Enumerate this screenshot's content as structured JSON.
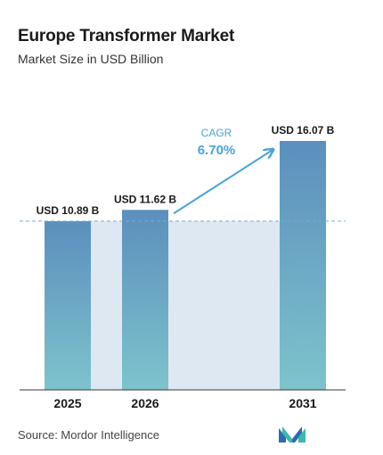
{
  "header": {
    "title": "Europe Transformer Market",
    "subtitle": "Market Size in USD Billion"
  },
  "chart_data": {
    "type": "bar",
    "categories": [
      "2025",
      "2026",
      "2031"
    ],
    "values": [
      10.89,
      11.62,
      16.07
    ],
    "value_labels": [
      "USD 10.89 B",
      "USD 11.62 B",
      "USD 16.07 B"
    ],
    "ylim": [
      0,
      16.07
    ],
    "grid": false,
    "annotations": {
      "cagr_label": "CAGR",
      "cagr_value": "6.70%"
    },
    "colors": {
      "bar_top": "#5b8fbd",
      "bar_bottom": "#7ec3cc",
      "band": "#dde8f2",
      "accent": "#4aa3d8",
      "dash": "#7fa9c9"
    }
  },
  "footer": {
    "source": "Source: Mordor Intelligence",
    "logo_icon": "mordor-intelligence-logo"
  }
}
